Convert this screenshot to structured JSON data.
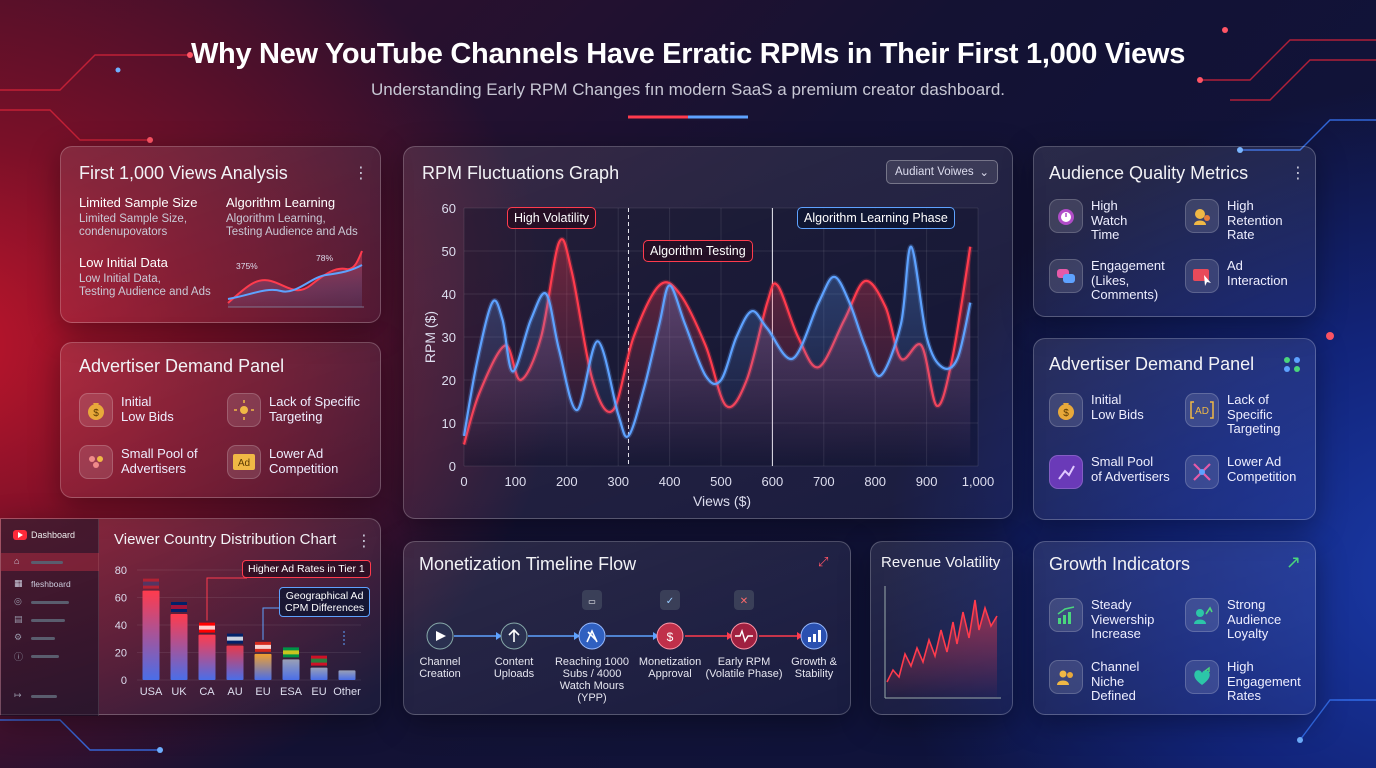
{
  "header": {
    "title": "Why New YouTube Channels Have Erratic RPMs in Their First 1,000 Views",
    "subtitle": "Understanding Early RPM Changes fın modern SaaS a premium creator dashboard."
  },
  "colors": {
    "red": "#ff3b4d",
    "blue": "#5ea2ff",
    "accent_green": "#4ad67d"
  },
  "first_views": {
    "title": "First 1,000 Views Analysis",
    "items": [
      {
        "head": "Limited Sample Size",
        "body": "Limited Sample Size,\ncondenupovators"
      },
      {
        "head": "Algorithm Learning",
        "body": "Algorithm Learning,\nTesting Audience and Ads"
      },
      {
        "head": "Low Initial Data",
        "body": "Low Initial Data,\nTesting Audience and Ads"
      }
    ],
    "mini_labels": [
      "375%",
      "78%"
    ]
  },
  "advertiser_left": {
    "title": "Advertiser Demand Panel",
    "items": [
      {
        "label": "Initial\nLow Bids",
        "icon": "money-bag-icon"
      },
      {
        "label": "Lack of Specific\nTargeting",
        "icon": "target-icon"
      },
      {
        "label": "Small Pool of\nAdvertisers",
        "icon": "people-icon"
      },
      {
        "label": "Lower Ad\nCompetition",
        "icon": "ad-icon"
      }
    ]
  },
  "rpm_graph": {
    "title": "RPM Fluctuations Graph",
    "dropdown": "Audiant Voiwes",
    "annotations": [
      "High Volatility",
      "Algorithm Testing",
      "Algorithm Learning Phase"
    ]
  },
  "chart_data": [
    {
      "type": "line",
      "title": "RPM Fluctuations Graph",
      "xlabel": "Views ($)",
      "ylabel": "RPM ($)",
      "xlim": [
        0,
        1000
      ],
      "ylim": [
        0,
        60
      ],
      "x_ticks": [
        "0",
        "100",
        "200",
        "300",
        "400",
        "500",
        "600",
        "700",
        "800",
        "900",
        "1,000"
      ],
      "y_ticks": [
        "0",
        "10",
        "20",
        "30",
        "40",
        "50",
        "60"
      ],
      "series": [
        {
          "color": "#ff3b4d",
          "points": [
            [
              0,
              5
            ],
            [
              30,
              17
            ],
            [
              80,
              28
            ],
            [
              110,
              20
            ],
            [
              150,
              30
            ],
            [
              185,
              52
            ],
            [
              210,
              45
            ],
            [
              250,
              20
            ],
            [
              290,
              13
            ],
            [
              330,
              30
            ],
            [
              380,
              42
            ],
            [
              420,
              40
            ],
            [
              470,
              28
            ],
            [
              510,
              14
            ],
            [
              550,
              20
            ],
            [
              590,
              38
            ],
            [
              610,
              42
            ],
            [
              650,
              30
            ],
            [
              690,
              23
            ],
            [
              740,
              34
            ],
            [
              780,
              43
            ],
            [
              820,
              37
            ],
            [
              850,
              25
            ],
            [
              890,
              28
            ],
            [
              920,
              14
            ],
            [
              950,
              25
            ],
            [
              985,
              51
            ]
          ]
        },
        {
          "color": "#5ea2ff",
          "points": [
            [
              0,
              7
            ],
            [
              25,
              24
            ],
            [
              55,
              38
            ],
            [
              75,
              34
            ],
            [
              95,
              22
            ],
            [
              130,
              34
            ],
            [
              160,
              40
            ],
            [
              185,
              27
            ],
            [
              220,
              13
            ],
            [
              260,
              29
            ],
            [
              300,
              12
            ],
            [
              320,
              7
            ],
            [
              350,
              18
            ],
            [
              380,
              33
            ],
            [
              400,
              42
            ],
            [
              430,
              33
            ],
            [
              470,
              21
            ],
            [
              500,
              20
            ],
            [
              530,
              30
            ],
            [
              560,
              36
            ],
            [
              590,
              32
            ],
            [
              640,
              25
            ],
            [
              690,
              38
            ],
            [
              720,
              44
            ],
            [
              750,
              38
            ],
            [
              780,
              28
            ],
            [
              810,
              21
            ],
            [
              850,
              33
            ],
            [
              870,
              51
            ],
            [
              900,
              30
            ],
            [
              930,
              23
            ],
            [
              960,
              25
            ],
            [
              985,
              38
            ]
          ]
        }
      ],
      "phase_markers": [
        320,
        600
      ]
    },
    {
      "type": "bar",
      "title": "Viewer Country Distribution Chart",
      "categories": [
        "USA",
        "UK",
        "CA",
        "AU",
        "EU",
        "ESA",
        "EU",
        "Other"
      ],
      "values": [
        65,
        48,
        33,
        25,
        19,
        15,
        9,
        7
      ],
      "ylim": [
        0,
        80
      ],
      "y_ticks": [
        "0",
        "20",
        "40",
        "60",
        "80"
      ]
    }
  ],
  "audience": {
    "title": "Audience Quality Metrics",
    "items": [
      {
        "label": "High\nWatch\nTime",
        "icon": "stopwatch-icon"
      },
      {
        "label": "High\nRetention\nRate",
        "icon": "retention-icon"
      },
      {
        "label": "Engagement\n(Likes,\nComments)",
        "icon": "chat-icon"
      },
      {
        "label": "Ad\nInteraction",
        "icon": "ad-interaction-icon"
      }
    ]
  },
  "advertiser_right": {
    "title": "Advertiser Demand Panel",
    "items": [
      {
        "label": "Initial\nLow Bids",
        "icon": "money-bag-icon"
      },
      {
        "label": "Lack of\nSpecific\nTargeting",
        "icon": "ad-target-icon"
      },
      {
        "label": "Small Pool\nof Advertisers",
        "icon": "pool-icon"
      },
      {
        "label": "Lower Ad\nCompetition",
        "icon": "competition-icon"
      }
    ]
  },
  "sidebar": {
    "brand": "Dashboard",
    "item": "fleshboard"
  },
  "country": {
    "title": "Viewer Country Distribution Chart",
    "callouts": [
      "Higher Ad Rates in Tier 1",
      "Geographical Ad\nCPM Differences"
    ]
  },
  "timeline": {
    "title": "Monetization Timeline Flow",
    "steps": [
      "Channel\nCreation",
      "Content\nUploads",
      "Reaching 1000\nSubs / 4000\nWatch Mours\n(YPP)",
      "Monetization\nApproval",
      "Early RPM\n(Volatile Phase)",
      "Growth &\nStability"
    ]
  },
  "revenue": {
    "title": "Revenue Volatility"
  },
  "growth": {
    "title": "Growth Indicators",
    "items": [
      {
        "label": "Steady\nViewership\nIncrease",
        "icon": "trend-icon"
      },
      {
        "label": "Strong\nAudience\nLoyalty",
        "icon": "loyalty-icon"
      },
      {
        "label": "Channel\nNiche\nDefined",
        "icon": "niche-icon"
      },
      {
        "label": "High\nEngagement\nRates",
        "icon": "engagement-icon"
      }
    ]
  }
}
